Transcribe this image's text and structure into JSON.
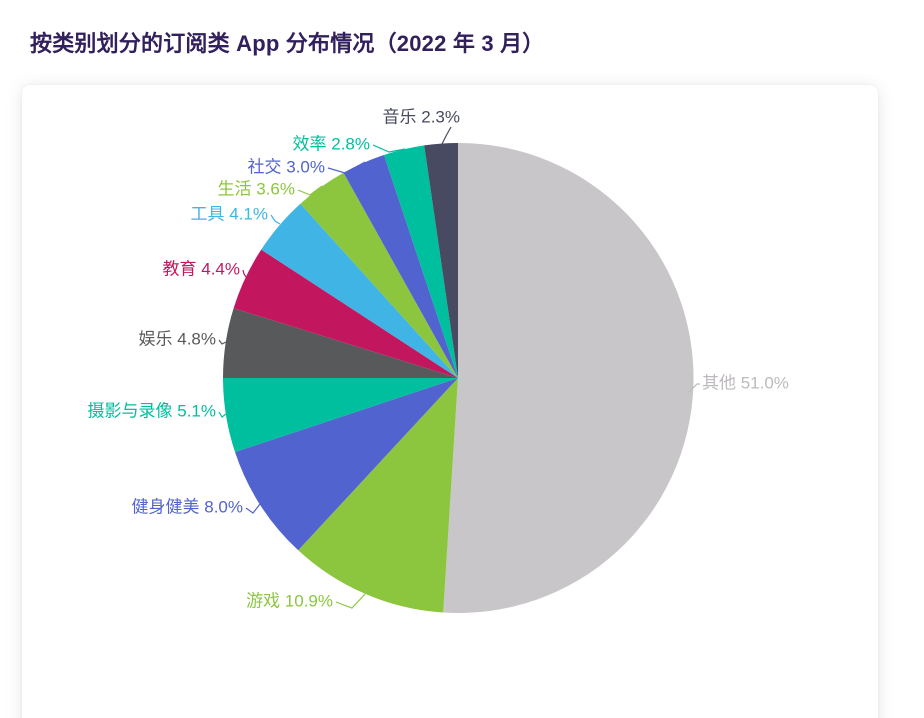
{
  "chart_data": {
    "type": "pie",
    "title": "按类别划分的订阅类 App 分布情况（2022 年 3 月）",
    "start_angle": "top",
    "direction": "clockwise",
    "label_position": "outside",
    "legend": "none",
    "title_color": "#32205C",
    "background_color": "#FFFFFF",
    "slices": [
      {
        "label": "其他",
        "value": 51.0,
        "display": "其他 51.0%",
        "color": "#C9C6C9",
        "label_color": "#BDBABD"
      },
      {
        "label": "游戏",
        "value": 10.9,
        "display": "游戏 10.9%",
        "color": "#8CC63E"
      },
      {
        "label": "健身健美",
        "value": 8.0,
        "display": "健身健美 8.0%",
        "color": "#5163CE"
      },
      {
        "label": "摄影与录像",
        "value": 5.1,
        "display": "摄影与录像 5.1%",
        "color": "#00BF9E"
      },
      {
        "label": "娱乐",
        "value": 4.8,
        "display": "娱乐 4.8%",
        "color": "#58595B"
      },
      {
        "label": "教育",
        "value": 4.4,
        "display": "教育 4.4%",
        "color": "#C2175F"
      },
      {
        "label": "工具",
        "value": 4.1,
        "display": "工具 4.1%",
        "color": "#3FB4E5"
      },
      {
        "label": "生活",
        "value": 3.6,
        "display": "生活 3.6%",
        "color": "#8CC63E"
      },
      {
        "label": "社交",
        "value": 3.0,
        "display": "社交 3.0%",
        "color": "#5163CE"
      },
      {
        "label": "效率",
        "value": 2.8,
        "display": "效率 2.8%",
        "color": "#00BF9E"
      },
      {
        "label": "音乐",
        "value": 2.3,
        "display": "音乐 2.3%",
        "color": "#474A60"
      }
    ]
  }
}
